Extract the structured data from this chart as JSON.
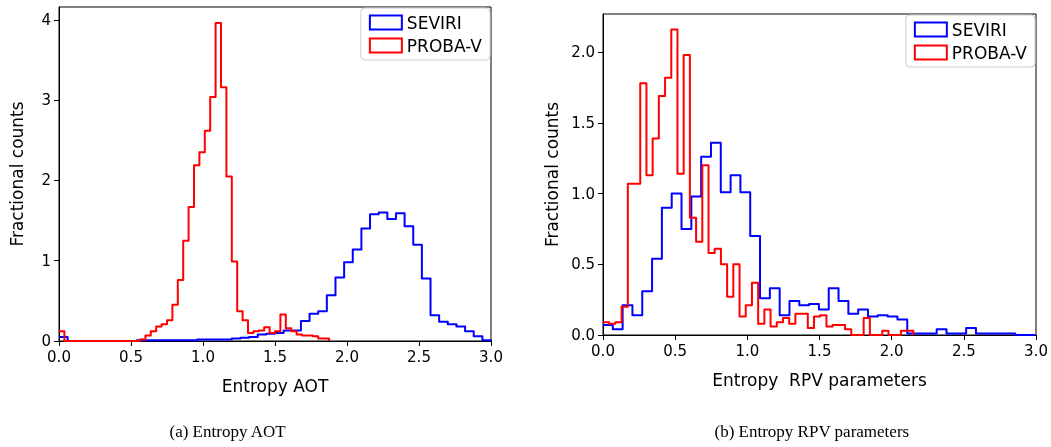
{
  "chart_data": [
    {
      "type": "step",
      "xlabel": "Entropy AOT",
      "ylabel": "Fractional counts",
      "legend": "top right",
      "grid": false,
      "marker": "none",
      "xlim": [
        0,
        3.0
      ],
      "xticks": [
        {
          "value": 0,
          "label": "0.0"
        },
        {
          "value": 0.5,
          "label": "0.5"
        },
        {
          "value": 1,
          "label": "1.0"
        },
        {
          "value": 1.5,
          "label": "1.5"
        },
        {
          "value": 2,
          "label": "2.0"
        },
        {
          "value": 2.5,
          "label": "2.5"
        },
        {
          "value": 3,
          "label": "3.0"
        }
      ],
      "ylim": [
        0,
        4.16
      ],
      "yticks": [
        0,
        1,
        2,
        3,
        4
      ],
      "annotations": [
        "(a) Entropy AOT"
      ],
      "series": [
        {
          "name": "SEVIRI",
          "color": "#0000ff",
          "x": [
            0,
            0.06,
            0.12,
            0.18,
            0.24,
            0.3,
            0.36,
            0.42,
            0.48,
            0.54,
            0.6,
            0.66,
            0.72,
            0.78,
            0.84,
            0.9,
            0.96,
            1.02,
            1.08,
            1.14,
            1.2,
            1.26,
            1.32,
            1.38,
            1.44,
            1.5,
            1.56,
            1.62,
            1.68,
            1.74,
            1.8,
            1.86,
            1.92,
            1.98,
            2.04,
            2.1,
            2.16,
            2.22,
            2.28,
            2.34,
            2.4,
            2.46,
            2.52,
            2.58,
            2.64,
            2.7,
            2.76,
            2.82,
            2.88,
            2.94,
            3.0
          ],
          "values": [
            0.05,
            0,
            0,
            0,
            0,
            0,
            0,
            0,
            0,
            0.01,
            0.01,
            0.01,
            0.01,
            0.01,
            0.01,
            0.01,
            0.02,
            0.02,
            0.02,
            0.02,
            0.03,
            0.04,
            0.05,
            0.08,
            0.09,
            0.1,
            0.13,
            0.13,
            0.25,
            0.34,
            0.37,
            0.57,
            0.79,
            0.98,
            1.14,
            1.4,
            1.58,
            1.6,
            1.52,
            1.59,
            1.43,
            1.2,
            0.78,
            0.32,
            0.24,
            0.21,
            0.18,
            0.12,
            0.06,
            0.01,
            0
          ]
        },
        {
          "name": "PROBA-V",
          "color": "#ff0000",
          "x": [
            0,
            0.0375,
            0.075,
            0.1125,
            0.15,
            0.1875,
            0.225,
            0.2625,
            0.3,
            0.3375,
            0.375,
            0.4125,
            0.45,
            0.4875,
            0.525,
            0.5625,
            0.6,
            0.6375,
            0.675,
            0.7125,
            0.75,
            0.7875,
            0.825,
            0.8625,
            0.9,
            0.9375,
            0.975,
            1.0125,
            1.05,
            1.0875,
            1.125,
            1.1625,
            1.2,
            1.2375,
            1.275,
            1.3125,
            1.35,
            1.3875,
            1.425,
            1.4625,
            1.5,
            1.5375,
            1.575,
            1.6125,
            1.65,
            1.6875,
            1.725,
            1.7625,
            1.8,
            1.8375,
            1.875
          ],
          "values": [
            0.12,
            0,
            0,
            0,
            0,
            0,
            0,
            0,
            0,
            0,
            0,
            0,
            0,
            0,
            0,
            0.02,
            0.07,
            0.12,
            0.18,
            0.21,
            0.26,
            0.45,
            0.76,
            1.25,
            1.67,
            2.19,
            2.35,
            2.62,
            3.04,
            3.96,
            3.16,
            2.05,
            0.99,
            0.37,
            0.26,
            0.1,
            0.12,
            0.13,
            0.17,
            0.1,
            0.12,
            0.33,
            0.16,
            0.12,
            0.08,
            0.07,
            0.07,
            0.06,
            0.03,
            0.03,
            0
          ]
        }
      ]
    },
    {
      "type": "step",
      "xlabel": "Entropy  RPV parameters",
      "ylabel": "Fractional counts",
      "legend": "top right",
      "grid": false,
      "marker": "none",
      "xlim": [
        0,
        3.0
      ],
      "xticks": [
        {
          "value": 0,
          "label": "0.0"
        },
        {
          "value": 0.5,
          "label": "0.5"
        },
        {
          "value": 1,
          "label": "1.0"
        },
        {
          "value": 1.5,
          "label": "1.5"
        },
        {
          "value": 2,
          "label": "2.0"
        },
        {
          "value": 2.5,
          "label": "2.5"
        },
        {
          "value": 3,
          "label": "3.0"
        }
      ],
      "ylim": [
        0,
        2.27
      ],
      "yticks": [
        {
          "value": 0,
          "label": "0.0"
        },
        {
          "value": 0.5,
          "label": "0.5"
        },
        {
          "value": 1,
          "label": "1.0"
        },
        {
          "value": 1.5,
          "label": "1.5"
        },
        {
          "value": 2,
          "label": "2.0"
        }
      ],
      "annotations": [
        "(b) Entropy RPV parameters"
      ],
      "series": [
        {
          "name": "SEVIRI",
          "color": "#0000ff",
          "x": [
            0,
            0.068,
            0.136,
            0.204,
            0.272,
            0.34,
            0.408,
            0.476,
            0.544,
            0.612,
            0.68,
            0.748,
            0.816,
            0.884,
            0.952,
            1.02,
            1.088,
            1.156,
            1.224,
            1.292,
            1.36,
            1.428,
            1.496,
            1.564,
            1.632,
            1.7,
            1.768,
            1.836,
            1.904,
            1.972,
            2.04,
            2.108,
            2.176,
            2.244,
            2.312,
            2.38,
            2.448,
            2.516,
            2.584,
            2.652,
            2.72,
            2.788,
            2.856,
            2.924,
            2.992
          ],
          "values": [
            0.07,
            0.04,
            0.21,
            0.14,
            0.31,
            0.54,
            0.9,
            1.0,
            0.75,
            0.98,
            1.26,
            1.36,
            1.01,
            1.13,
            1.01,
            0.7,
            0.26,
            0.33,
            0.14,
            0.24,
            0.21,
            0.22,
            0.18,
            0.33,
            0.24,
            0.15,
            0.18,
            0.13,
            0.14,
            0.13,
            0.11,
            0.01,
            0.01,
            0.01,
            0.04,
            0.01,
            0.01,
            0.05,
            0.01,
            0.01,
            0.01,
            0.01,
            0,
            0,
            0
          ]
        },
        {
          "name": "PROBA-V",
          "color": "#ff0000",
          "x": [
            0,
            0.043,
            0.086,
            0.129,
            0.172,
            0.215,
            0.258,
            0.301,
            0.344,
            0.387,
            0.43,
            0.473,
            0.516,
            0.559,
            0.602,
            0.645,
            0.688,
            0.731,
            0.774,
            0.817,
            0.86,
            0.903,
            0.946,
            0.989,
            1.032,
            1.075,
            1.118,
            1.161,
            1.204,
            1.247,
            1.29,
            1.333,
            1.376,
            1.419,
            1.462,
            1.505,
            1.548,
            1.591,
            1.634,
            1.677,
            1.72,
            1.763,
            1.806,
            1.849,
            1.892,
            1.935,
            1.978,
            2.021,
            2.064,
            2.107,
            2.15
          ],
          "values": [
            0.09,
            0.08,
            0.09,
            0.2,
            1.07,
            1.07,
            1.78,
            1.13,
            1.39,
            1.69,
            1.82,
            2.16,
            1.14,
            1.98,
            0.83,
            0.66,
            1.2,
            0.58,
            0.61,
            0.5,
            0.27,
            0.5,
            0.13,
            0.21,
            0.37,
            0.08,
            0.18,
            0.06,
            0.09,
            0.12,
            0.08,
            0.15,
            0.15,
            0.05,
            0.13,
            0.14,
            0.06,
            0.07,
            0.07,
            0.04,
            0,
            0,
            0.12,
            0,
            0,
            0.03,
            0,
            0,
            0.03,
            0.03,
            0
          ]
        }
      ]
    }
  ]
}
